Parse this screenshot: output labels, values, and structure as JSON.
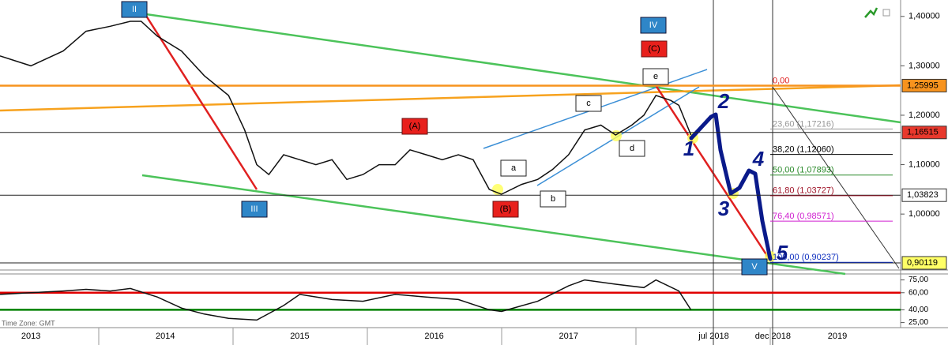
{
  "chart_data": [
    {
      "type": "line",
      "x": [
        2013.27,
        2013.5,
        2013.74,
        2013.91,
        2014.09,
        2014.24,
        2014.32,
        2014.44,
        2014.62,
        2014.79,
        2014.97,
        2015.09,
        2015.18,
        2015.27,
        2015.38,
        2015.5,
        2015.62,
        2015.74,
        2015.85,
        2015.97,
        2016.09,
        2016.21,
        2016.32,
        2016.44,
        2016.56,
        2016.68,
        2016.79,
        2016.91,
        2017.0,
        2017.15,
        2017.27,
        2017.38,
        2017.5,
        2017.62,
        2017.74,
        2017.85,
        2017.97,
        2018.06,
        2018.15,
        2018.26,
        2018.32,
        2018.41
      ],
      "series": [
        {
          "color": "#111111",
          "values": [
            1.32,
            1.3,
            1.33,
            1.37,
            1.38,
            1.39,
            1.39,
            1.36,
            1.33,
            1.28,
            1.24,
            1.17,
            1.1,
            1.08,
            1.12,
            1.11,
            1.1,
            1.11,
            1.07,
            1.08,
            1.1,
            1.1,
            1.13,
            1.12,
            1.11,
            1.12,
            1.11,
            1.05,
            1.04,
            1.06,
            1.07,
            1.09,
            1.12,
            1.17,
            1.18,
            1.16,
            1.18,
            1.2,
            1.24,
            1.23,
            1.22,
            1.16
          ]
        }
      ],
      "xlim": [
        2013.27,
        2019.97
      ],
      "xticks": [
        {
          "value": 2013.5,
          "label": "2013"
        },
        {
          "value": 2014.5,
          "label": "2014"
        },
        {
          "value": 2015.5,
          "label": "2015"
        },
        {
          "value": 2016.5,
          "label": "2016"
        },
        {
          "value": 2017.5,
          "label": "2017"
        },
        {
          "value": 2018.58,
          "label": "jul 2018"
        },
        {
          "value": 2019.02,
          "label": "dec 2018"
        },
        {
          "value": 2019.5,
          "label": "2019"
        }
      ],
      "ylim": [
        0.89,
        1.43
      ],
      "yticks": [
        {
          "value": 1.4,
          "label": "1,40000"
        },
        {
          "value": 1.3,
          "label": "1,30000"
        },
        {
          "value": 1.2,
          "label": "1,20000"
        },
        {
          "value": 1.1,
          "label": "1,10000"
        },
        {
          "value": 1.0,
          "label": "1,00000"
        }
      ],
      "price_labels": [
        {
          "value": 1.25995,
          "label": "1,25995",
          "color": "#f7931e"
        },
        {
          "value": 1.16515,
          "label": "1,16515",
          "color": "#e8382c"
        },
        {
          "value": 1.03823,
          "label": "1,03823",
          "color": "#ffffff"
        },
        {
          "value": 0.90119,
          "label": "0,90119",
          "color": "#ffff66"
        }
      ],
      "fib_zero_label": "0,00",
      "fib_levels": [
        {
          "value": 1.17216,
          "label": "23,60 (1,17216)",
          "color": "#999999"
        },
        {
          "value": 1.1206,
          "label": "38,20 (1,12060)",
          "color": "#000000"
        },
        {
          "value": 1.07893,
          "label": "50,00 (1,07893)",
          "color": "#2a8a2a"
        },
        {
          "value": 1.03727,
          "label": "61,80 (1,03727)",
          "color": "#a0162a"
        },
        {
          "value": 0.98571,
          "label": "76,40 (0,98571)",
          "color": "#d020d0"
        },
        {
          "value": 0.90237,
          "label": "100,00 (0,90237)",
          "color": "#1030c0"
        }
      ],
      "wave_major": [
        "II",
        "III",
        "IV",
        "V"
      ],
      "wave_abc": [
        "(A)",
        "(B)",
        "(C)"
      ],
      "wave_minor": [
        "a",
        "b",
        "c",
        "d",
        "e"
      ],
      "wave_impulse": [
        "1",
        "2",
        "3",
        "4",
        "5"
      ]
    },
    {
      "type": "line",
      "x": [
        2013.27,
        2013.5,
        2013.74,
        2013.91,
        2014.09,
        2014.24,
        2014.44,
        2014.62,
        2014.79,
        2014.97,
        2015.18,
        2015.38,
        2015.5,
        2015.74,
        2015.97,
        2016.21,
        2016.44,
        2016.68,
        2016.91,
        2017.0,
        2017.27,
        2017.5,
        2017.62,
        2017.85,
        2018.06,
        2018.15,
        2018.32,
        2018.41
      ],
      "series": [
        {
          "color": "#111111",
          "values": [
            58,
            60,
            62,
            64,
            62,
            65,
            55,
            42,
            35,
            30,
            28,
            45,
            58,
            52,
            50,
            58,
            55,
            52,
            40,
            38,
            50,
            68,
            75,
            70,
            66,
            75,
            62,
            40
          ]
        }
      ],
      "ylim": [
        20,
        82
      ],
      "yticks": [
        {
          "value": 75,
          "label": "75,00"
        },
        {
          "value": 60,
          "label": "60,00"
        },
        {
          "value": 40,
          "label": "40,00"
        },
        {
          "value": 25,
          "label": "25,00"
        }
      ],
      "levels": [
        {
          "value": 60,
          "color": "#e00000"
        },
        {
          "value": 40,
          "color": "#008000"
        }
      ]
    }
  ],
  "time_zone": "Time Zone: GMT"
}
